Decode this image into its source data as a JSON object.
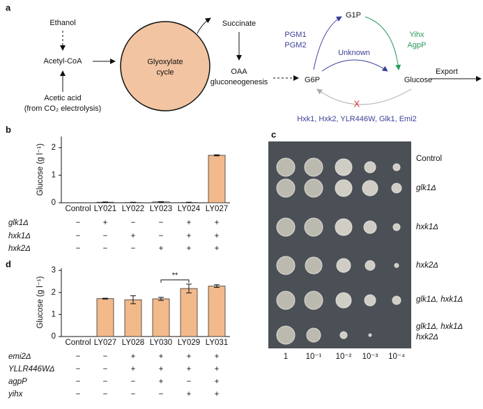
{
  "panels": {
    "a": "a",
    "b": "b",
    "c": "c",
    "d": "d"
  },
  "diagram": {
    "ethanol": "Ethanol",
    "acetyl_coa": "Acetyl-CoA",
    "acetic_acid": "Acetic acid",
    "acetic_source": "(from CO₂ electrolysis)",
    "cycle": [
      "Glyoxylate",
      "cycle"
    ],
    "succinate": "Succinate",
    "oaa": [
      "OAA",
      "gluconeogenesis"
    ],
    "g6p": "G6P",
    "g1p": "G1P",
    "glucose": "Glucose",
    "pgm": [
      "PGM1",
      "PGM2"
    ],
    "yihx": [
      "Yihx",
      "AgpP"
    ],
    "unknown": "Unknown",
    "blocked": "X",
    "kinases": "Hxk1, Hxk2, YLR446W, Glk1, Emi2",
    "export": "Export"
  },
  "chart_data": [
    {
      "type": "bar",
      "ylabel": "Glucose (g l⁻¹)",
      "categories": [
        "Control",
        "LY021",
        "LY022",
        "LY023",
        "LY024",
        "LY027"
      ],
      "values": [
        0,
        0.02,
        0.01,
        0.03,
        0.01,
        1.72
      ],
      "errors": [
        0,
        0.01,
        0.01,
        0.01,
        0.01,
        0.02
      ],
      "color": "#f2b98a",
      "ylim": [
        0,
        2.4
      ],
      "yticks": [
        0,
        1,
        2
      ],
      "genotypes": [
        {
          "label": "glk1Δ",
          "marks": [
            "−",
            "+",
            "−",
            "−",
            "+",
            "+"
          ]
        },
        {
          "label": "hxk1Δ",
          "marks": [
            "−",
            "−",
            "+",
            "−",
            "+",
            "+"
          ]
        },
        {
          "label": "hxk2Δ",
          "marks": [
            "−",
            "−",
            "−",
            "+",
            "+",
            "+"
          ]
        }
      ]
    },
    {
      "type": "bar",
      "ylabel": "Glucose (g l⁻¹)",
      "categories": [
        "Control",
        "LY027",
        "LY028",
        "LY030",
        "LY029",
        "LY031"
      ],
      "values": [
        0,
        1.72,
        1.67,
        1.71,
        2.18,
        2.29
      ],
      "errors": [
        0,
        0.02,
        0.18,
        0.07,
        0.2,
        0.06
      ],
      "color": "#f2b98a",
      "ylim": [
        0,
        3.1
      ],
      "yticks": [
        0,
        1,
        2,
        3
      ],
      "significance": {
        "text": "**",
        "from": 3,
        "to": 4
      },
      "genotypes": [
        {
          "label": "emi2Δ",
          "marks": [
            "−",
            "−",
            "+",
            "+",
            "+",
            "+"
          ]
        },
        {
          "label": "YLLR446WΔ",
          "marks": [
            "−",
            "−",
            "+",
            "+",
            "+",
            "+"
          ]
        },
        {
          "label": "agpP",
          "marks": [
            "−",
            "−",
            "−",
            "+",
            "−",
            "+"
          ]
        },
        {
          "label": "yihx",
          "marks": [
            "−",
            "−",
            "−",
            "−",
            "+",
            "+"
          ]
        }
      ]
    }
  ],
  "plate": {
    "rows": [
      [
        "Control"
      ],
      [
        "glk1Δ"
      ],
      [
        "hxk1Δ"
      ],
      [
        "hxk2Δ"
      ],
      [
        "glk1Δ, hxk1Δ"
      ],
      [
        "glk1Δ, hxk1Δ",
        "hxk2Δ"
      ]
    ],
    "dilutions": [
      "1",
      "10⁻¹",
      "10⁻²",
      "10⁻³",
      "10⁻⁴"
    ]
  }
}
